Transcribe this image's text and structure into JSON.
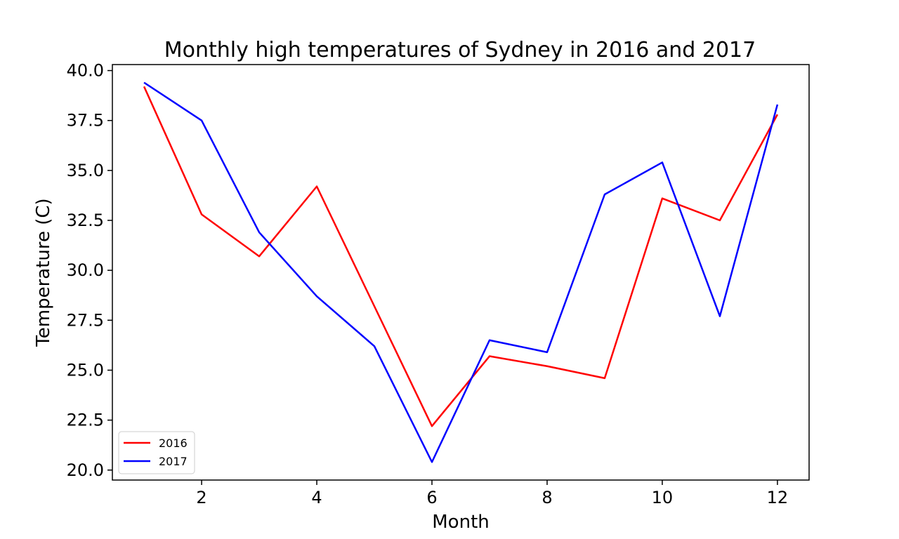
{
  "chart_data": {
    "type": "line",
    "title": "Monthly high temperatures of Sydney in 2016 and 2017",
    "xlabel": "Month",
    "ylabel": "Temperature (C)",
    "x": [
      1,
      2,
      3,
      4,
      5,
      6,
      7,
      8,
      9,
      10,
      11,
      12
    ],
    "xlim": [
      0.45,
      12.55
    ],
    "ylim": [
      19.5,
      40.3
    ],
    "xticks": [
      2,
      4,
      6,
      8,
      10,
      12
    ],
    "xtick_labels": [
      "2",
      "4",
      "6",
      "8",
      "10",
      "12"
    ],
    "yticks": [
      20.0,
      22.5,
      25.0,
      27.5,
      30.0,
      32.5,
      35.0,
      37.5,
      40.0
    ],
    "ytick_labels": [
      "20.0",
      "22.5",
      "25.0",
      "27.5",
      "30.0",
      "32.5",
      "35.0",
      "37.5",
      "40.0"
    ],
    "grid": false,
    "legend_position": "lower-left",
    "series": [
      {
        "name": "2016",
        "color": "#ff0000",
        "values": [
          39.2,
          32.8,
          30.7,
          34.2,
          28.2,
          22.2,
          25.7,
          25.2,
          24.6,
          33.6,
          32.5,
          37.8
        ]
      },
      {
        "name": "2017",
        "color": "#0000ff",
        "values": [
          39.4,
          37.5,
          31.9,
          28.7,
          26.2,
          20.4,
          26.5,
          25.9,
          33.8,
          35.4,
          27.7,
          38.3
        ]
      }
    ]
  }
}
